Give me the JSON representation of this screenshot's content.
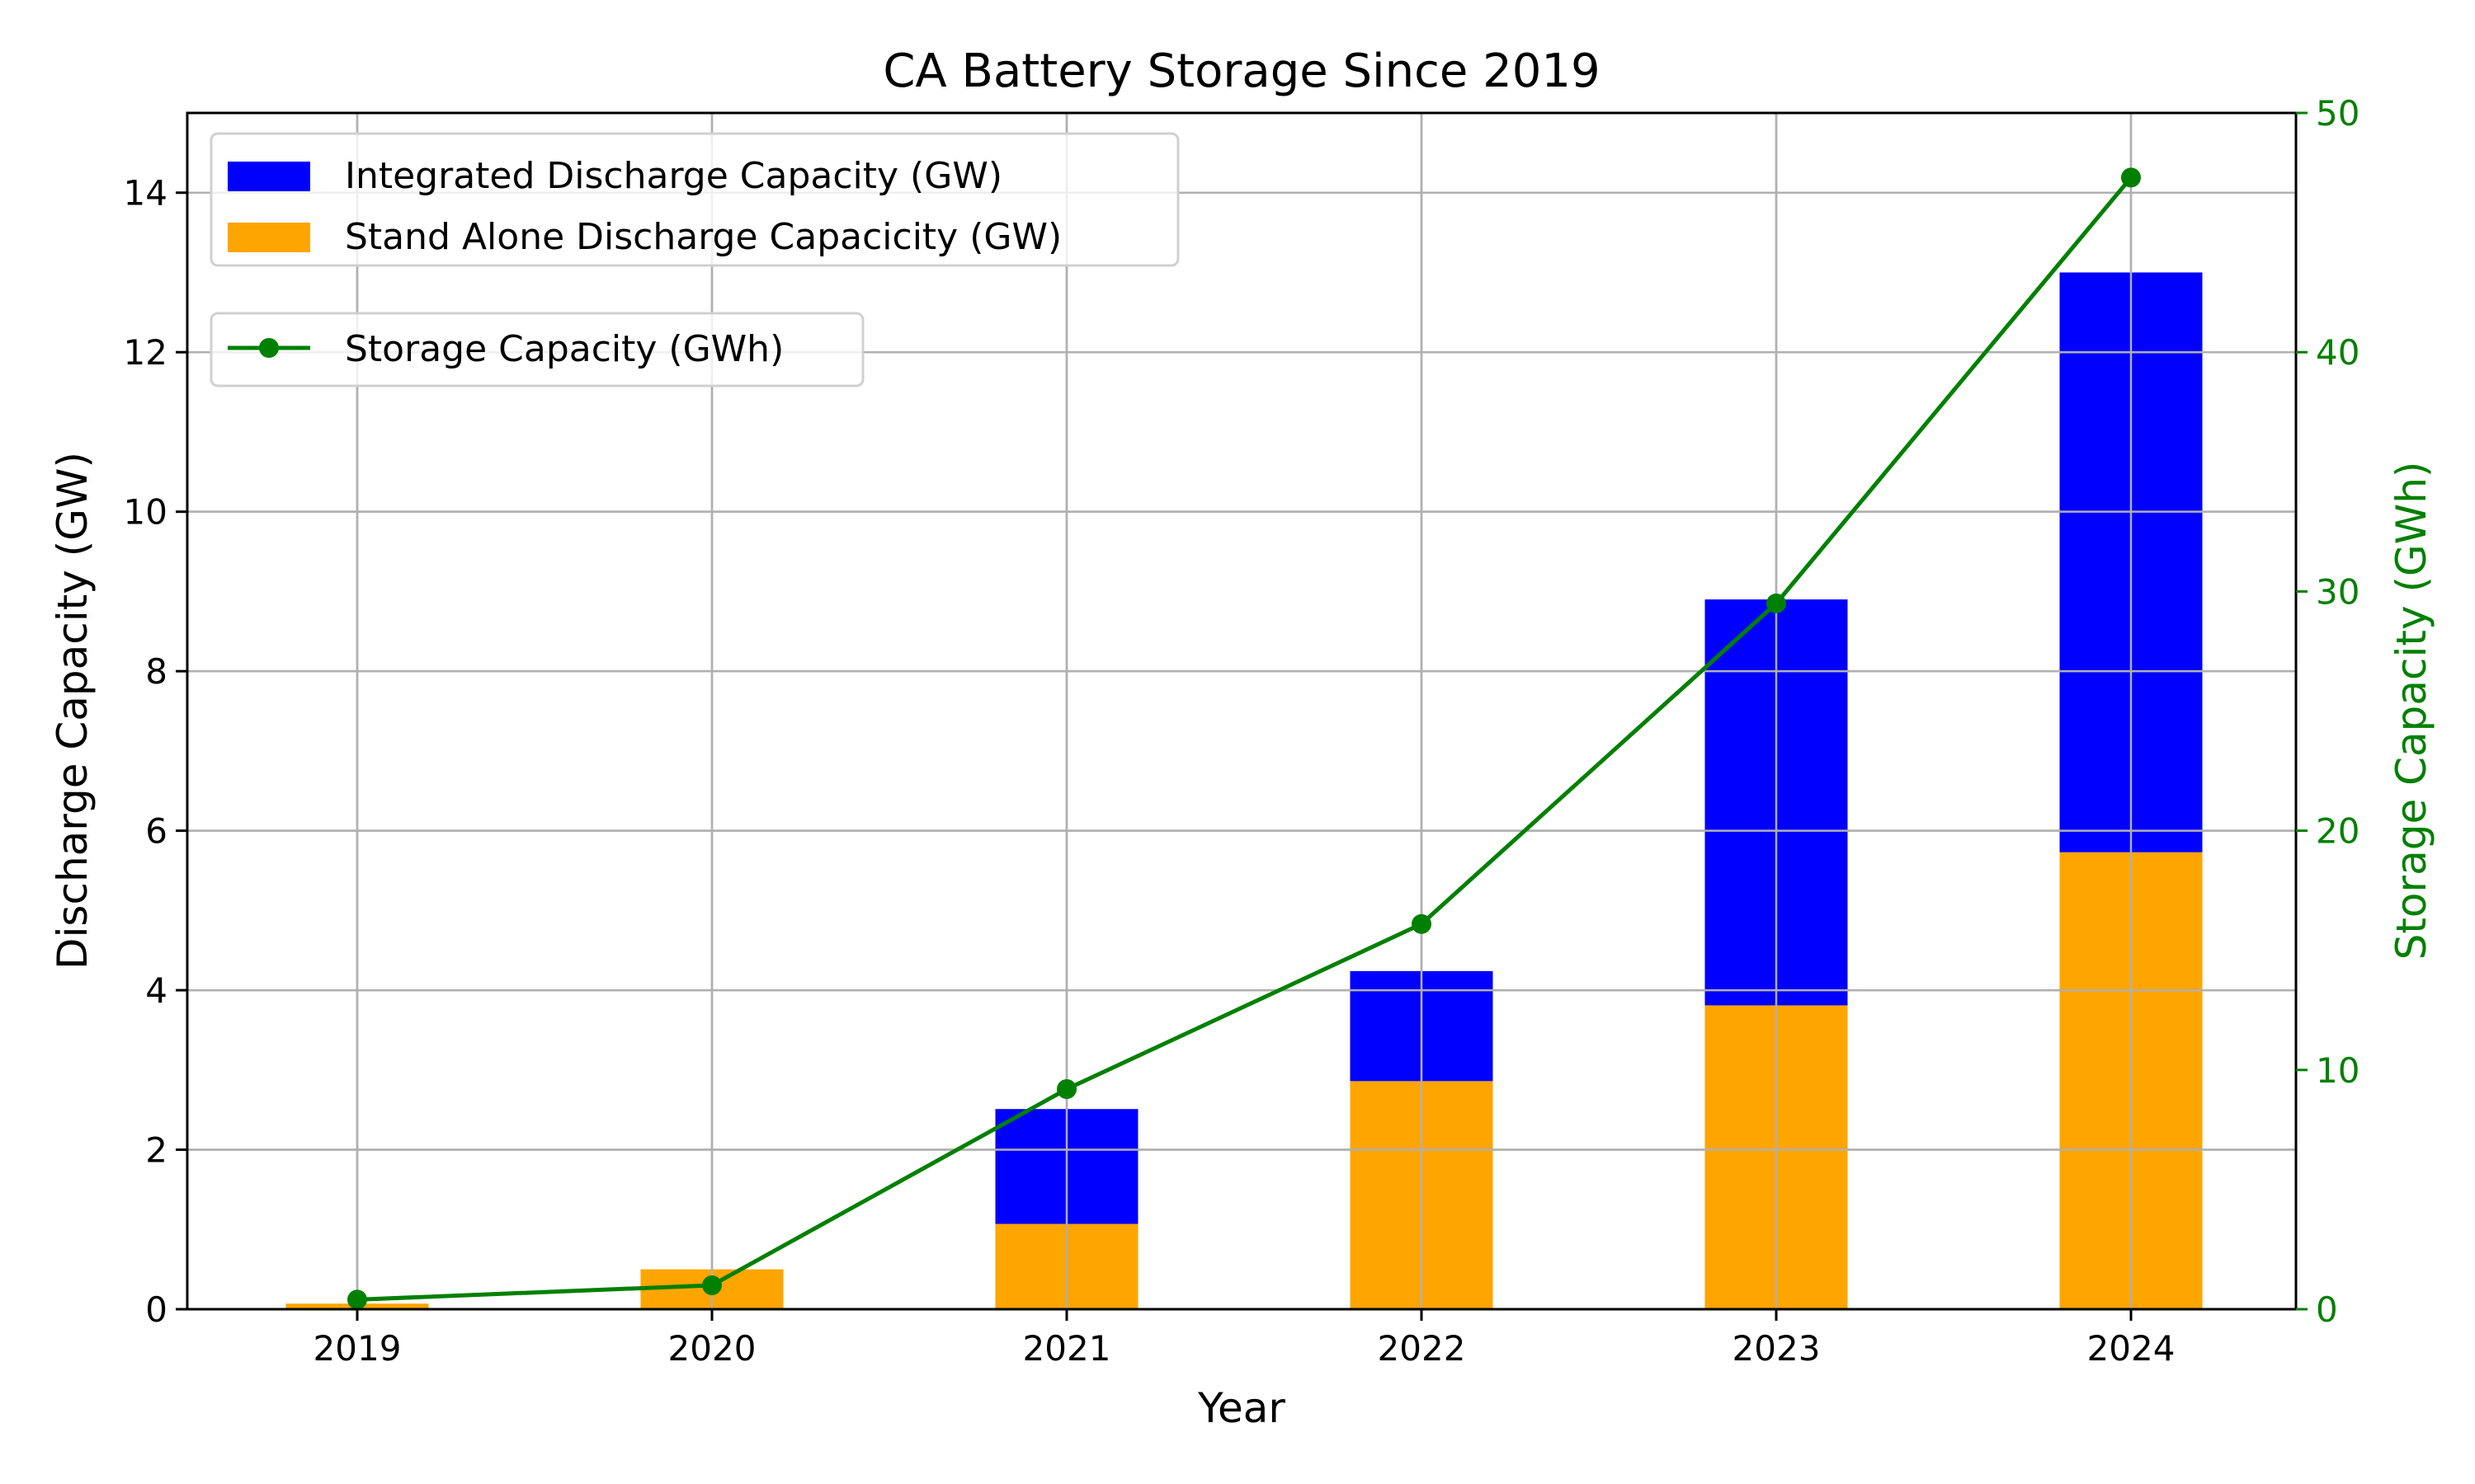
{
  "chart_data": {
    "type": "bar",
    "stacked": true,
    "title": "CA Battery Storage Since 2019",
    "xlabel": "Year",
    "ylabel": "Discharge Capacity (GW)",
    "ylabel_right": "Storage Capacity (GWh)",
    "categories": [
      "2019",
      "2020",
      "2021",
      "2022",
      "2023",
      "2024"
    ],
    "ylim": [
      0,
      15
    ],
    "ylim_right": [
      0,
      50
    ],
    "yticks": [
      0,
      2,
      4,
      6,
      8,
      10,
      12,
      14
    ],
    "yticks_right": [
      0,
      10,
      20,
      30,
      40,
      50
    ],
    "grid": true,
    "series": [
      {
        "name": "Stand Alone Discharge Capacicity (GW)",
        "type": "bar",
        "axis": "left",
        "color": "#ffa500",
        "values": [
          0.07,
          0.5,
          1.07,
          2.86,
          3.81,
          5.73
        ]
      },
      {
        "name": "Integrated Discharge Capacity (GW)",
        "type": "bar",
        "axis": "left",
        "color": "#0000ff",
        "values": [
          0.0,
          0.0,
          1.44,
          1.38,
          5.09,
          7.27
        ]
      },
      {
        "name": "Storage Capacity (GWh)",
        "type": "line",
        "axis": "right",
        "color": "#008000",
        "marker": "circle",
        "values": [
          0.4,
          1.0,
          9.2,
          16.1,
          29.5,
          47.3
        ]
      }
    ],
    "legends": [
      {
        "placement": "top-left",
        "entries": [
          "Integrated Discharge Capacity (GW)",
          "Stand Alone Discharge Capacicity (GW)"
        ]
      },
      {
        "placement": "upper-left",
        "entries": [
          "Storage Capacity (GWh)"
        ]
      }
    ]
  }
}
